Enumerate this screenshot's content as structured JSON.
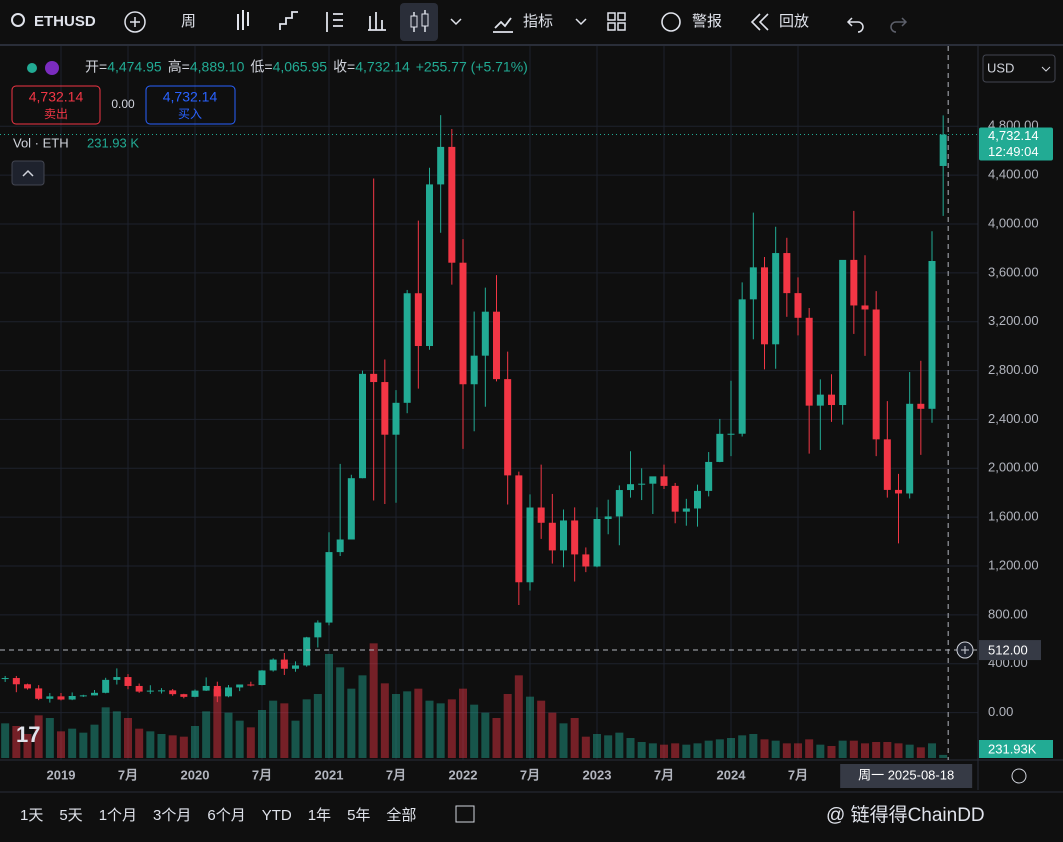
{
  "toolbar": {
    "symbol": "ETHUSD",
    "interval": "周",
    "indicators": "指标",
    "alerts": "警报",
    "replay": "回放"
  },
  "legend": {
    "ohlc": [
      {
        "label": "开=",
        "value": "4,474.95"
      },
      {
        "label": "高=",
        "value": "4,889.10"
      },
      {
        "label": "低=",
        "value": "4,065.95"
      },
      {
        "label": "收=",
        "value": "4,732.14"
      }
    ],
    "change": "+255.77 (+5.71%)",
    "sell": {
      "price": "4,732.14",
      "label": "卖出"
    },
    "spread": "0.00",
    "buy": {
      "price": "4,732.14",
      "label": "买入"
    },
    "volume": {
      "label": "Vol · ETH",
      "value": "231.93 K"
    }
  },
  "currency": "USD",
  "ranges": [
    "1天",
    "5天",
    "1个月",
    "3个月",
    "6个月",
    "YTD",
    "1年",
    "5年",
    "全部"
  ],
  "watermark": "@ 链得得ChainDD",
  "chart_data": {
    "type": "candlestick",
    "up_color": "#22ab94",
    "down_color": "#f23645",
    "x": [
      "2018-08",
      "2018-09",
      "2018-10",
      "2018-11",
      "2018-12",
      "2019-01",
      "2019-02",
      "2019-03",
      "2019-04",
      "2019-05",
      "2019-06",
      "2019-07",
      "2019-08",
      "2019-09",
      "2019-10",
      "2019-11",
      "2019-12",
      "2020-01",
      "2020-02",
      "2020-03",
      "2020-04",
      "2020-05",
      "2020-06",
      "2020-07",
      "2020-08",
      "2020-09",
      "2020-10",
      "2020-11",
      "2020-12",
      "2021-01",
      "2021-02",
      "2021-03",
      "2021-04",
      "2021-05",
      "2021-06",
      "2021-07",
      "2021-08",
      "2021-09",
      "2021-10",
      "2021-11",
      "2021-12",
      "2022-01",
      "2022-02",
      "2022-03",
      "2022-04",
      "2022-05",
      "2022-06",
      "2022-07",
      "2022-08",
      "2022-09",
      "2022-10",
      "2022-11",
      "2022-12",
      "2023-01",
      "2023-02",
      "2023-03",
      "2023-04",
      "2023-05",
      "2023-06",
      "2023-07",
      "2023-08",
      "2023-09",
      "2023-10",
      "2023-11",
      "2023-12",
      "2024-01",
      "2024-02",
      "2024-03",
      "2024-04",
      "2024-05",
      "2024-06",
      "2024-07",
      "2024-08",
      "2024-09",
      "2024-10",
      "2024-11",
      "2024-12",
      "2025-01",
      "2025-02",
      "2025-03",
      "2025-04",
      "2025-05",
      "2025-06",
      "2025-07",
      "2025-08"
    ],
    "open": [
      282,
      283,
      232,
      198,
      113,
      133,
      107,
      136,
      141,
      162,
      268,
      291,
      218,
      172,
      180,
      182,
      151,
      129,
      180,
      218,
      133,
      206,
      230,
      226,
      345,
      434,
      359,
      386,
      616,
      737,
      1314,
      1417,
      1919,
      2773,
      2706,
      2275,
      2536,
      3433,
      3001,
      4324,
      4631,
      3683,
      2688,
      2922,
      3282,
      2730,
      1942,
      1067,
      1679,
      1554,
      1328,
      1573,
      1295,
      1196,
      1585,
      1606,
      1822,
      1870,
      1874,
      1934,
      1856,
      1645,
      1671,
      1815,
      2052,
      2282,
      2283,
      3383,
      3645,
      3015,
      3762,
      3434,
      3232,
      2513,
      2603,
      2518,
      3706,
      3333,
      3300,
      2237,
      1823,
      1794,
      2528,
      2487,
      4474.95
    ],
    "high": [
      300,
      300,
      237,
      225,
      160,
      160,
      165,
      146,
      185,
      285,
      362,
      315,
      238,
      224,
      200,
      193,
      154,
      189,
      288,
      253,
      226,
      227,
      253,
      348,
      444,
      488,
      419,
      620,
      755,
      1476,
      2036,
      1947,
      2800,
      4372,
      2891,
      2640,
      3460,
      4027,
      4460,
      4891,
      4778,
      3876,
      3283,
      3479,
      3581,
      2955,
      1973,
      1786,
      2030,
      1790,
      1663,
      1680,
      1352,
      1680,
      1743,
      1860,
      2140,
      2000,
      1930,
      2030,
      1880,
      1750,
      1866,
      2133,
      2404,
      2717,
      3522,
      4093,
      3730,
      3977,
      3887,
      3563,
      3312,
      2728,
      2770,
      3682,
      4107,
      3744,
      3450,
      2550,
      1954,
      2788,
      2880,
      3941,
      4889.1
    ],
    "low": [
      251,
      167,
      188,
      102,
      82,
      100,
      102,
      128,
      140,
      158,
      230,
      191,
      162,
      153,
      156,
      138,
      117,
      126,
      177,
      86,
      126,
      176,
      215,
      224,
      336,
      308,
      334,
      376,
      533,
      715,
      1282,
      1433,
      1918,
      1736,
      1708,
      1718,
      2451,
      2652,
      2970,
      3928,
      3504,
      2159,
      2303,
      2504,
      2712,
      1704,
      881,
      1000,
      1422,
      1220,
      1190,
      1073,
      1150,
      1190,
      1460,
      1370,
      1760,
      1740,
      1626,
      1830,
      1550,
      1530,
      1522,
      1770,
      2050,
      2100,
      2260,
      3056,
      2810,
      2815,
      3240,
      3088,
      2120,
      2150,
      2380,
      2357,
      3100,
      2920,
      2100,
      1760,
      1385,
      1753,
      2110,
      2373,
      4065.95
    ],
    "close": [
      283,
      232,
      198,
      113,
      133,
      107,
      136,
      141,
      162,
      268,
      291,
      218,
      172,
      180,
      182,
      151,
      129,
      180,
      218,
      133,
      206,
      230,
      226,
      345,
      434,
      359,
      386,
      616,
      737,
      1314,
      1417,
      1919,
      2773,
      2706,
      2275,
      2536,
      3433,
      3001,
      4324,
      4631,
      3683,
      2688,
      2922,
      3282,
      2730,
      1942,
      1067,
      1679,
      1554,
      1328,
      1573,
      1295,
      1196,
      1585,
      1606,
      1822,
      1870,
      1874,
      1934,
      1856,
      1645,
      1671,
      1815,
      2052,
      2282,
      2283,
      3383,
      3645,
      3015,
      3762,
      3434,
      3232,
      2513,
      2603,
      2518,
      3706,
      3333,
      3300,
      2237,
      1823,
      1794,
      2528,
      2487,
      3697,
      4732.14
    ],
    "volume": [
      2600,
      2400,
      1800,
      3200,
      3000,
      2000,
      2200,
      1900,
      2500,
      3800,
      3500,
      3000,
      2200,
      2000,
      1800,
      1700,
      1600,
      2400,
      3500,
      5200,
      3400,
      2800,
      2300,
      3600,
      4300,
      4100,
      2800,
      4400,
      4800,
      7800,
      6800,
      5200,
      6200,
      8600,
      5600,
      4800,
      5000,
      5200,
      4300,
      4100,
      4400,
      5200,
      4000,
      3400,
      3000,
      4800,
      6200,
      4600,
      4300,
      3400,
      2600,
      3000,
      1600,
      1800,
      1700,
      1900,
      1500,
      1200,
      1100,
      1000,
      1100,
      1000,
      1100,
      1300,
      1400,
      1500,
      1700,
      1800,
      1400,
      1300,
      1100,
      1100,
      1400,
      1000,
      900,
      1300,
      1300,
      1100,
      1200,
      1200,
      1100,
      1000,
      800,
      1100,
      231.93
    ],
    "ylim": [
      -388,
      5457
    ],
    "yticks": [
      {
        "value": 0,
        "label": "0.00"
      },
      {
        "value": 400,
        "label": "400.00"
      },
      {
        "value": 800,
        "label": "800.00"
      },
      {
        "value": 1200,
        "label": "1,200.00"
      },
      {
        "value": 1600,
        "label": "1,600.00"
      },
      {
        "value": 2000,
        "label": "2,000.00"
      },
      {
        "value": 2400,
        "label": "2,400.00"
      },
      {
        "value": 2800,
        "label": "2,800.00"
      },
      {
        "value": 3200,
        "label": "3,200.00"
      },
      {
        "value": 3600,
        "label": "3,600.00"
      },
      {
        "value": 4000,
        "label": "4,000.00"
      },
      {
        "value": 4400,
        "label": "4,400.00"
      },
      {
        "value": 4800,
        "label": "4,800.00"
      }
    ],
    "volume_lim": [
      0,
      9000
    ],
    "xticks": [
      {
        "value": "2019-01",
        "label": "2019"
      },
      {
        "value": "2019-07",
        "label": "7月"
      },
      {
        "value": "2020-01",
        "label": "2020"
      },
      {
        "value": "2020-07",
        "label": "7月"
      },
      {
        "value": "2021-01",
        "label": "2021"
      },
      {
        "value": "2021-07",
        "label": "7月"
      },
      {
        "value": "2022-01",
        "label": "2022"
      },
      {
        "value": "2022-07",
        "label": "7月"
      },
      {
        "value": "2023-01",
        "label": "2023"
      },
      {
        "value": "2023-07",
        "label": "7月"
      },
      {
        "value": "2024-01",
        "label": "2024"
      },
      {
        "value": "2024-07",
        "label": "7月"
      }
    ],
    "grid": true,
    "last_price": {
      "value": 4732.14,
      "label": "4,732.14",
      "time": "12:49:04"
    },
    "crosshair": {
      "price": {
        "value": 512,
        "label": "512.00"
      },
      "date": "周一 2025-08-18",
      "volume": "231.93K"
    }
  }
}
